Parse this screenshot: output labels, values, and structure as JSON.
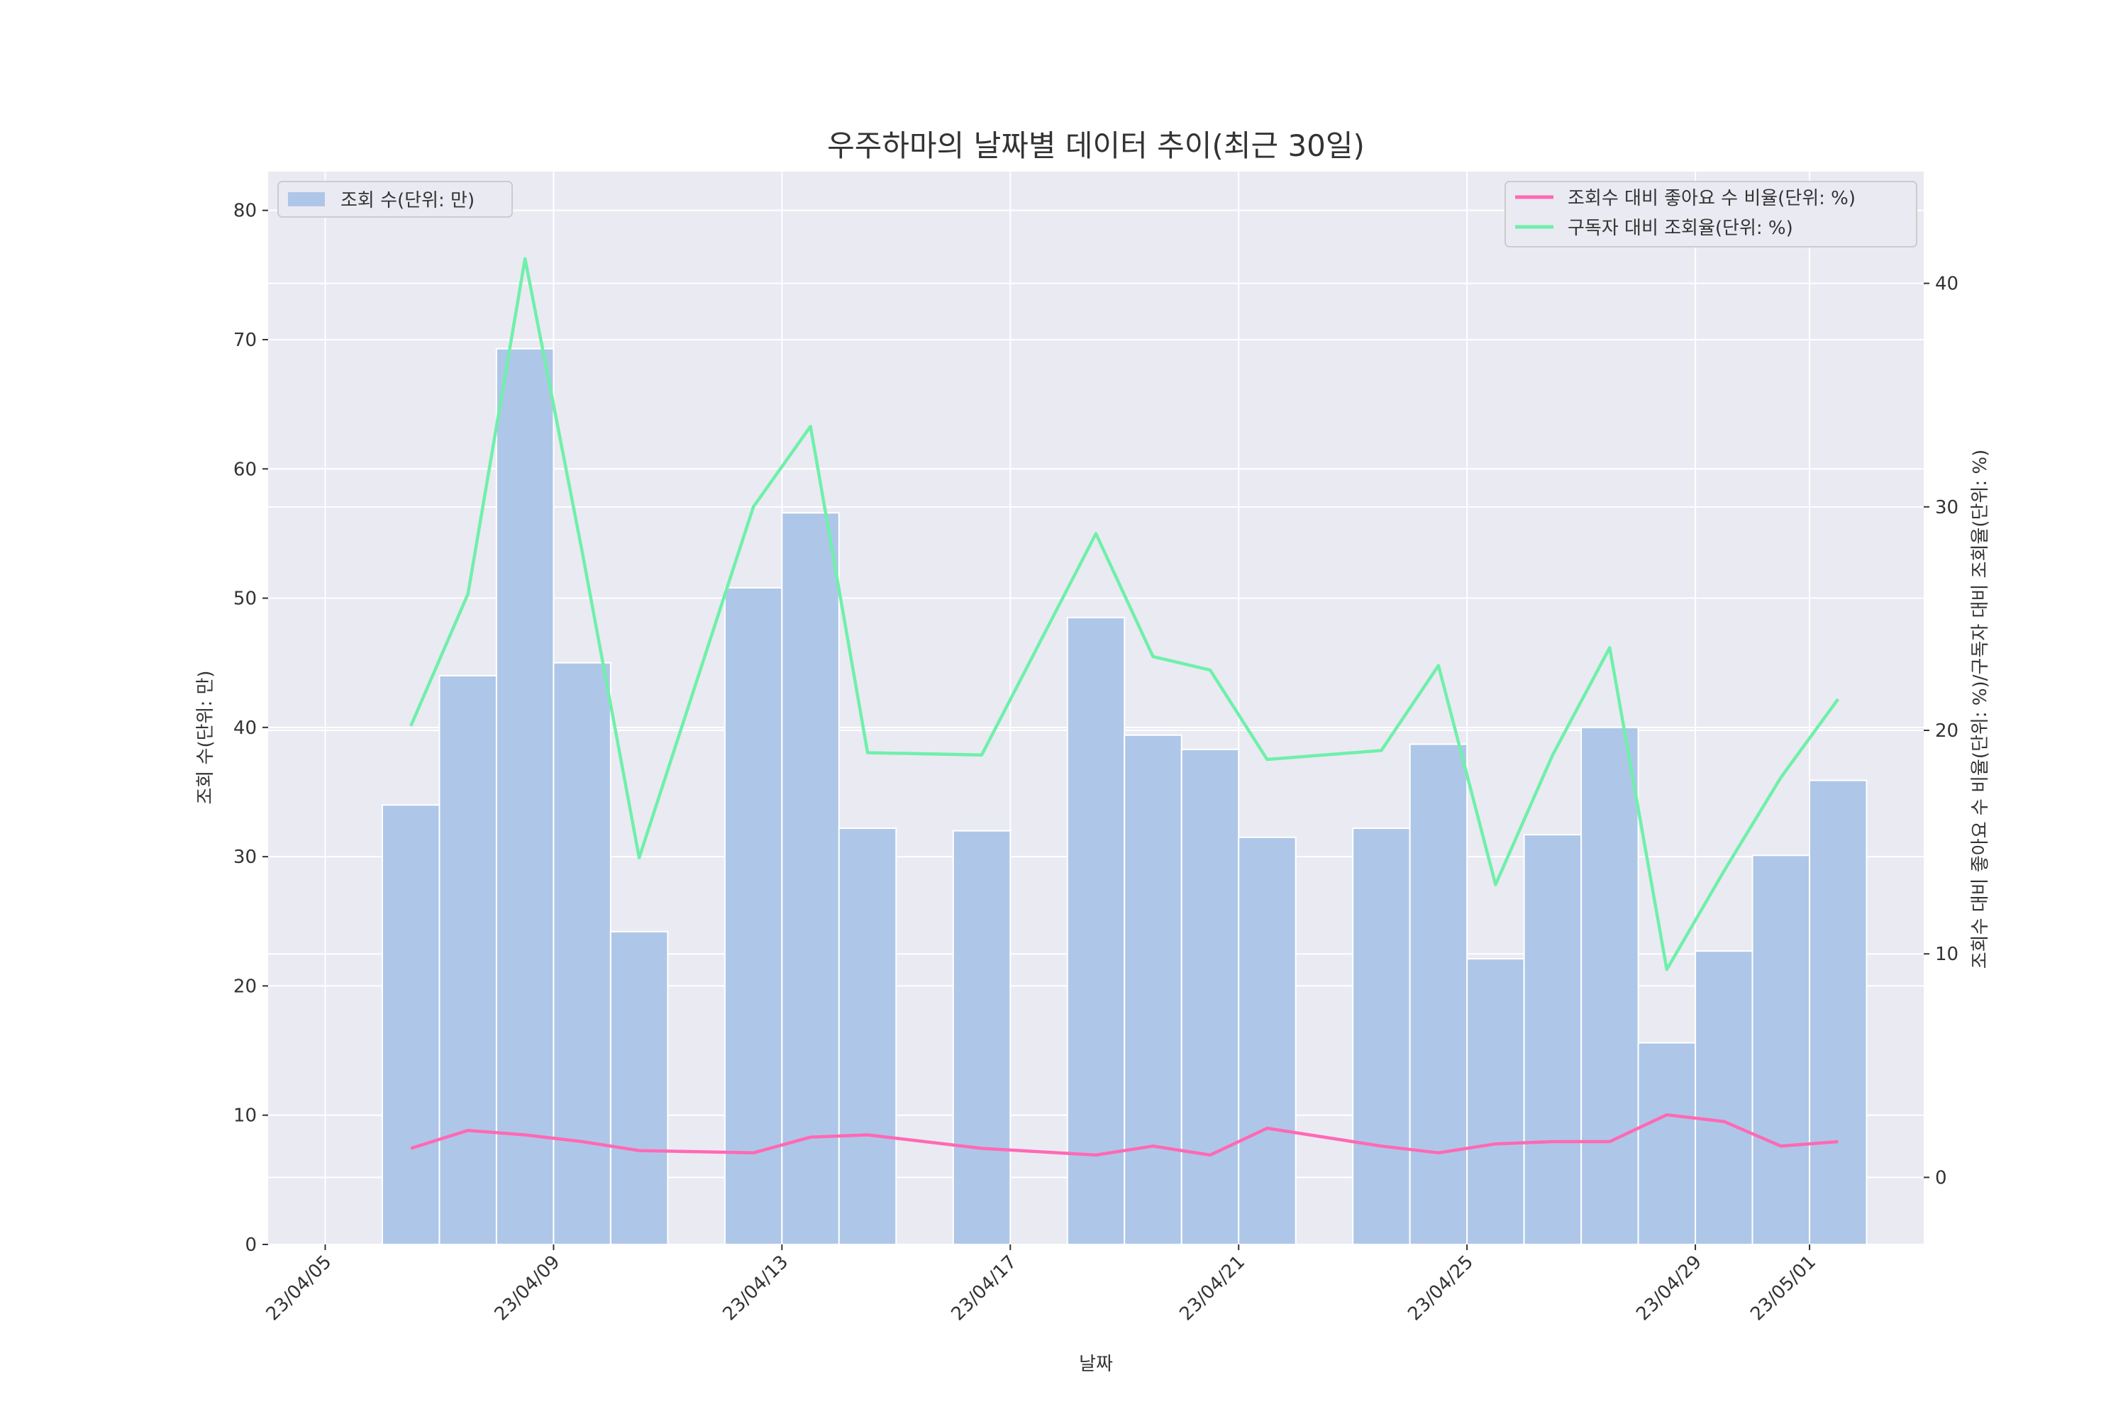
{
  "chart_data": {
    "type": "bar",
    "title": "우주하마의 날짜별 데이터 추이(최근 30일)",
    "xlabel": "날짜",
    "ylabel_left": "조회 수(단위: 만)",
    "ylabel_right": "조회수 대비 좋아요 수 비율(단위: %)/구독자 대비 조회율(단위: %)",
    "x_tick_labels": [
      "23/04/05",
      "23/04/09",
      "23/04/13",
      "23/04/17",
      "23/04/21",
      "23/04/25",
      "23/04/29",
      "23/05/01"
    ],
    "x_ticks": [
      "2023-04-05",
      "2023-04-09",
      "2023-04-13",
      "2023-04-17",
      "2023-04-21",
      "2023-04-25",
      "2023-04-29",
      "2023-05-01"
    ],
    "x_range": [
      "2023-04-04",
      "2023-05-03"
    ],
    "ylim_left": [
      0,
      83
    ],
    "yticks_left": [
      0,
      10,
      20,
      30,
      40,
      50,
      60,
      70,
      80
    ],
    "ylim_right": [
      -3,
      45
    ],
    "yticks_right": [
      0,
      10,
      20,
      30,
      40
    ],
    "grid": true,
    "legend_left": "top-left",
    "legend_right": "top-right",
    "colors": {
      "background": "#eaeaf2",
      "bar": "#aec7e8",
      "like_ratio": "#ff69b4",
      "view_ratio": "#6ff0aa",
      "grid": "#ffffff"
    },
    "bar_series": {
      "name": "조회 수(단위: 만)",
      "axis": "left",
      "points": [
        {
          "date": "2023-04-06",
          "value": 34.0
        },
        {
          "date": "2023-04-07",
          "value": 44.0
        },
        {
          "date": "2023-04-08",
          "value": 69.3
        },
        {
          "date": "2023-04-09",
          "value": 45.0
        },
        {
          "date": "2023-04-10",
          "value": 24.2
        },
        {
          "date": "2023-04-12",
          "value": 50.8
        },
        {
          "date": "2023-04-13",
          "value": 56.6
        },
        {
          "date": "2023-04-14",
          "value": 32.2
        },
        {
          "date": "2023-04-16",
          "value": 32.0
        },
        {
          "date": "2023-04-18",
          "value": 48.5
        },
        {
          "date": "2023-04-19",
          "value": 39.4
        },
        {
          "date": "2023-04-20",
          "value": 38.3
        },
        {
          "date": "2023-04-21",
          "value": 31.5
        },
        {
          "date": "2023-04-23",
          "value": 32.2
        },
        {
          "date": "2023-04-24",
          "value": 38.7
        },
        {
          "date": "2023-04-25",
          "value": 22.1
        },
        {
          "date": "2023-04-26",
          "value": 31.7
        },
        {
          "date": "2023-04-27",
          "value": 40.0
        },
        {
          "date": "2023-04-28",
          "value": 15.6
        },
        {
          "date": "2023-04-29",
          "value": 22.7
        },
        {
          "date": "2023-04-30",
          "value": 30.1
        },
        {
          "date": "2023-05-01",
          "value": 35.9
        }
      ]
    },
    "line_series": [
      {
        "name": "조회수 대비 좋아요 수 비율(단위: %)",
        "axis": "right",
        "points": [
          {
            "date": "2023-04-06",
            "value": 1.3
          },
          {
            "date": "2023-04-07",
            "value": 2.1
          },
          {
            "date": "2023-04-08",
            "value": 1.9
          },
          {
            "date": "2023-04-09",
            "value": 1.6
          },
          {
            "date": "2023-04-10",
            "value": 1.2
          },
          {
            "date": "2023-04-12",
            "value": 1.1
          },
          {
            "date": "2023-04-13",
            "value": 1.8
          },
          {
            "date": "2023-04-14",
            "value": 1.9
          },
          {
            "date": "2023-04-16",
            "value": 1.3
          },
          {
            "date": "2023-04-18",
            "value": 1.0
          },
          {
            "date": "2023-04-19",
            "value": 1.4
          },
          {
            "date": "2023-04-20",
            "value": 1.0
          },
          {
            "date": "2023-04-21",
            "value": 2.2
          },
          {
            "date": "2023-04-23",
            "value": 1.4
          },
          {
            "date": "2023-04-24",
            "value": 1.1
          },
          {
            "date": "2023-04-25",
            "value": 1.5
          },
          {
            "date": "2023-04-26",
            "value": 1.6
          },
          {
            "date": "2023-04-27",
            "value": 1.6
          },
          {
            "date": "2023-04-28",
            "value": 2.8
          },
          {
            "date": "2023-04-29",
            "value": 2.5
          },
          {
            "date": "2023-04-30",
            "value": 1.4
          },
          {
            "date": "2023-05-01",
            "value": 1.6
          }
        ]
      },
      {
        "name": "구독자 대비 조회율(단위: %)",
        "axis": "right",
        "points": [
          {
            "date": "2023-04-06",
            "value": 20.2
          },
          {
            "date": "2023-04-07",
            "value": 26.1
          },
          {
            "date": "2023-04-08",
            "value": 41.1
          },
          {
            "date": "2023-04-09",
            "value": 28.0
          },
          {
            "date": "2023-04-10",
            "value": 14.3
          },
          {
            "date": "2023-04-12",
            "value": 30.0
          },
          {
            "date": "2023-04-13",
            "value": 33.6
          },
          {
            "date": "2023-04-14",
            "value": 19.0
          },
          {
            "date": "2023-04-16",
            "value": 18.9
          },
          {
            "date": "2023-04-18",
            "value": 28.8
          },
          {
            "date": "2023-04-19",
            "value": 23.3
          },
          {
            "date": "2023-04-20",
            "value": 22.7
          },
          {
            "date": "2023-04-21",
            "value": 18.7
          },
          {
            "date": "2023-04-23",
            "value": 19.1
          },
          {
            "date": "2023-04-24",
            "value": 22.9
          },
          {
            "date": "2023-04-25",
            "value": 13.1
          },
          {
            "date": "2023-04-26",
            "value": 18.9
          },
          {
            "date": "2023-04-27",
            "value": 23.7
          },
          {
            "date": "2023-04-28",
            "value": 9.3
          },
          {
            "date": "2023-04-29",
            "value": 13.7
          },
          {
            "date": "2023-04-30",
            "value": 17.9
          },
          {
            "date": "2023-05-01",
            "value": 21.4
          }
        ]
      }
    ]
  }
}
